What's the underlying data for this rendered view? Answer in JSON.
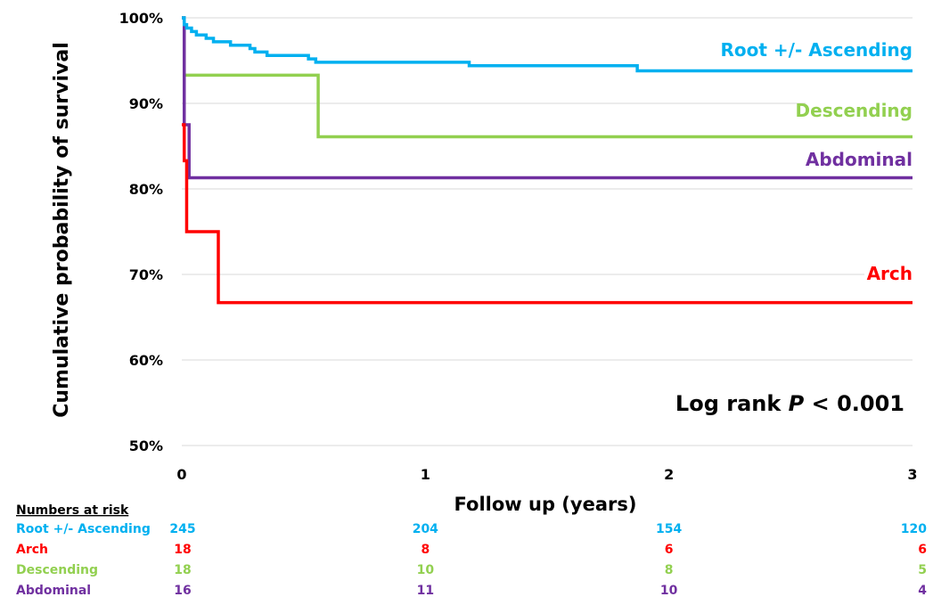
{
  "chart_data": {
    "type": "line",
    "step": true,
    "ylabel": "Cumulative probability of survival",
    "xlabel": "Follow up (years)",
    "ylim": [
      50,
      100
    ],
    "xlim": [
      0,
      3
    ],
    "yticks": [
      {
        "value": 100,
        "label": "100%"
      },
      {
        "value": 90,
        "label": "90%"
      },
      {
        "value": 80,
        "label": "80%"
      },
      {
        "value": 70,
        "label": "70%"
      },
      {
        "value": 60,
        "label": "60%"
      },
      {
        "value": 50,
        "label": "50%"
      }
    ],
    "xticks": [
      {
        "value": 0,
        "label": "0"
      },
      {
        "value": 1,
        "label": "1"
      },
      {
        "value": 2,
        "label": "2"
      },
      {
        "value": 3,
        "label": "3"
      }
    ],
    "grid": true,
    "annotation": {
      "prefix": "Log rank ",
      "italic": "P",
      "suffix": " < 0.001"
    },
    "series": [
      {
        "name": "Root +/- Ascending",
        "color": "#00B0F0",
        "points": [
          [
            0,
            100
          ],
          [
            0.01,
            99.2
          ],
          [
            0.02,
            98.8
          ],
          [
            0.04,
            98.4
          ],
          [
            0.06,
            98
          ],
          [
            0.1,
            97.6
          ],
          [
            0.13,
            97.2
          ],
          [
            0.2,
            96.8
          ],
          [
            0.28,
            96.4
          ],
          [
            0.3,
            96
          ],
          [
            0.35,
            95.6
          ],
          [
            0.52,
            95.2
          ],
          [
            0.55,
            94.8
          ],
          [
            1.18,
            94.4
          ],
          [
            1.87,
            93.8
          ],
          [
            3,
            93.8
          ]
        ]
      },
      {
        "name": "Descending",
        "color": "#92D050",
        "points": [
          [
            0,
            100
          ],
          [
            0.01,
            93.3
          ],
          [
            0.56,
            93.3
          ],
          [
            0.56,
            86.1
          ],
          [
            3,
            86.1
          ]
        ]
      },
      {
        "name": "Abdominal",
        "color": "#7030A0",
        "points": [
          [
            0,
            100
          ],
          [
            0.01,
            87.5
          ],
          [
            0.03,
            87.5
          ],
          [
            0.03,
            81.3
          ],
          [
            3,
            81.3
          ]
        ]
      },
      {
        "name": "Arch",
        "color": "#FF0000",
        "points": [
          [
            0,
            87.5
          ],
          [
            0.01,
            83.3
          ],
          [
            0.02,
            75
          ],
          [
            0.15,
            75
          ],
          [
            0.15,
            66.7
          ],
          [
            3,
            66.7
          ]
        ]
      }
    ],
    "risk_table": {
      "title": "Numbers at risk",
      "rows": [
        {
          "label": "Root +/- Ascending",
          "color": "#00B0F0",
          "values": [
            "245",
            "204",
            "154",
            "120"
          ]
        },
        {
          "label": "Arch",
          "color": "#FF0000",
          "values": [
            "18",
            "8",
            "6",
            "6"
          ]
        },
        {
          "label": "Descending",
          "color": "#92D050",
          "values": [
            "18",
            "10",
            "8",
            "5"
          ]
        },
        {
          "label": "Abdominal",
          "color": "#7030A0",
          "values": [
            "16",
            "11",
            "10",
            "4"
          ]
        }
      ]
    }
  }
}
